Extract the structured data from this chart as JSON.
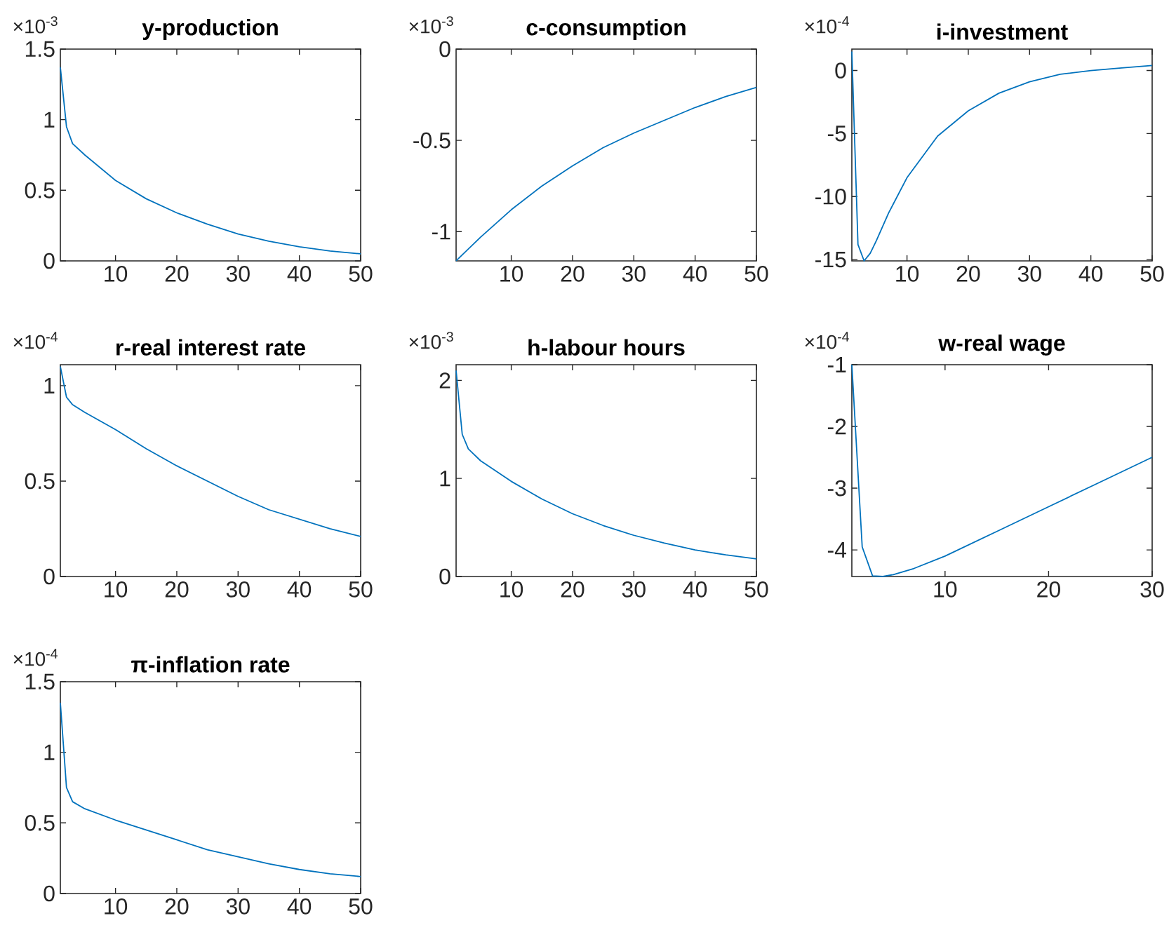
{
  "chart_data": [
    {
      "type": "line",
      "title": "y-production",
      "annotations": [
        "×10$^{-3}$"
      ],
      "x": [
        1,
        2,
        3,
        5,
        10,
        15,
        20,
        25,
        30,
        35,
        40,
        45,
        50
      ],
      "xlim": [
        1,
        50
      ],
      "xticks": [
        10,
        20,
        30,
        40,
        50
      ],
      "ylim": [
        0,
        1.5
      ],
      "yticks": [
        0,
        0.5,
        1,
        1.5
      ],
      "series": [
        {
          "color": "#0072bd",
          "values": [
            1.37,
            0.95,
            0.83,
            0.75,
            0.57,
            0.44,
            0.34,
            0.26,
            0.19,
            0.14,
            0.1,
            0.07,
            0.05
          ]
        }
      ]
    },
    {
      "type": "line",
      "title": "c-consumption",
      "annotations": [
        "×10$^{-3}$"
      ],
      "x": [
        1,
        5,
        10,
        15,
        20,
        25,
        30,
        35,
        40,
        45,
        50
      ],
      "xlim": [
        1,
        50
      ],
      "xticks": [
        10,
        20,
        30,
        40,
        50
      ],
      "ylim": [
        -1.16,
        0
      ],
      "yticks": [
        -1,
        -0.5,
        0
      ],
      "series": [
        {
          "color": "#0072bd",
          "values": [
            -1.16,
            -1.03,
            -0.88,
            -0.75,
            -0.64,
            -0.54,
            -0.46,
            -0.39,
            -0.32,
            -0.26,
            -0.21
          ]
        }
      ]
    },
    {
      "type": "line",
      "title": "i-investment",
      "annotations": [
        "×10$^{-4}$"
      ],
      "x": [
        1,
        2,
        3,
        4,
        5,
        7,
        10,
        15,
        20,
        25,
        30,
        35,
        40,
        45,
        50
      ],
      "xlim": [
        1,
        50
      ],
      "xticks": [
        10,
        20,
        30,
        40,
        50
      ],
      "ylim": [
        -15.1,
        1.7
      ],
      "yticks": [
        -15,
        -10,
        -5,
        0
      ],
      "series": [
        {
          "color": "#0072bd",
          "values": [
            1.5,
            -13.8,
            -15.1,
            -14.5,
            -13.5,
            -11.3,
            -8.5,
            -5.2,
            -3.2,
            -1.8,
            -0.9,
            -0.3,
            0,
            0.2,
            0.4
          ]
        }
      ]
    },
    {
      "type": "line",
      "title": "r-real interest rate",
      "annotations": [
        "×10$^{-4}$"
      ],
      "x": [
        1,
        2,
        3,
        5,
        10,
        15,
        20,
        25,
        30,
        35,
        40,
        45,
        50
      ],
      "xlim": [
        1,
        50
      ],
      "xticks": [
        10,
        20,
        30,
        40,
        50
      ],
      "ylim": [
        0,
        1.11
      ],
      "yticks": [
        0,
        0.5,
        1
      ],
      "series": [
        {
          "color": "#0072bd",
          "values": [
            1.1,
            0.94,
            0.9,
            0.86,
            0.77,
            0.67,
            0.58,
            0.5,
            0.42,
            0.35,
            0.3,
            0.25,
            0.21
          ]
        }
      ]
    },
    {
      "type": "line",
      "title": "h-labour hours",
      "annotations": [
        "×10$^{-3}$"
      ],
      "x": [
        1,
        2,
        3,
        5,
        10,
        15,
        20,
        25,
        30,
        35,
        40,
        45,
        50
      ],
      "xlim": [
        1,
        50
      ],
      "xticks": [
        10,
        20,
        30,
        40,
        50
      ],
      "ylim": [
        0,
        2.16
      ],
      "yticks": [
        0,
        1,
        2
      ],
      "series": [
        {
          "color": "#0072bd",
          "values": [
            2.1,
            1.45,
            1.3,
            1.18,
            0.97,
            0.79,
            0.64,
            0.52,
            0.42,
            0.34,
            0.27,
            0.22,
            0.18
          ]
        }
      ]
    },
    {
      "type": "line",
      "title": "w-real wage",
      "annotations": [
        "×10$^{-4}$"
      ],
      "x": [
        1,
        2,
        3,
        4,
        5,
        7,
        10,
        15,
        20,
        25,
        30
      ],
      "xlim": [
        1,
        30
      ],
      "xticks": [
        10,
        20,
        30
      ],
      "ylim": [
        -4.43,
        -1
      ],
      "yticks": [
        -4,
        -3,
        -2,
        -1
      ],
      "series": [
        {
          "color": "#0072bd",
          "values": [
            -1,
            -3.95,
            -4.42,
            -4.43,
            -4.4,
            -4.3,
            -4.1,
            -3.7,
            -3.3,
            -2.9,
            -2.5
          ]
        }
      ]
    },
    {
      "type": "line",
      "title": "π-inflation rate",
      "annotations": [
        "×10$^{-4}$"
      ],
      "x": [
        1,
        2,
        3,
        5,
        10,
        15,
        20,
        25,
        30,
        35,
        40,
        45,
        50
      ],
      "xlim": [
        1,
        50
      ],
      "xticks": [
        10,
        20,
        30,
        40,
        50
      ],
      "ylim": [
        0,
        1.5
      ],
      "yticks": [
        0,
        0.5,
        1,
        1.5
      ],
      "series": [
        {
          "color": "#0072bd",
          "values": [
            1.35,
            0.75,
            0.65,
            0.6,
            0.52,
            0.45,
            0.38,
            0.31,
            0.26,
            0.21,
            0.17,
            0.14,
            0.12
          ]
        }
      ]
    }
  ]
}
